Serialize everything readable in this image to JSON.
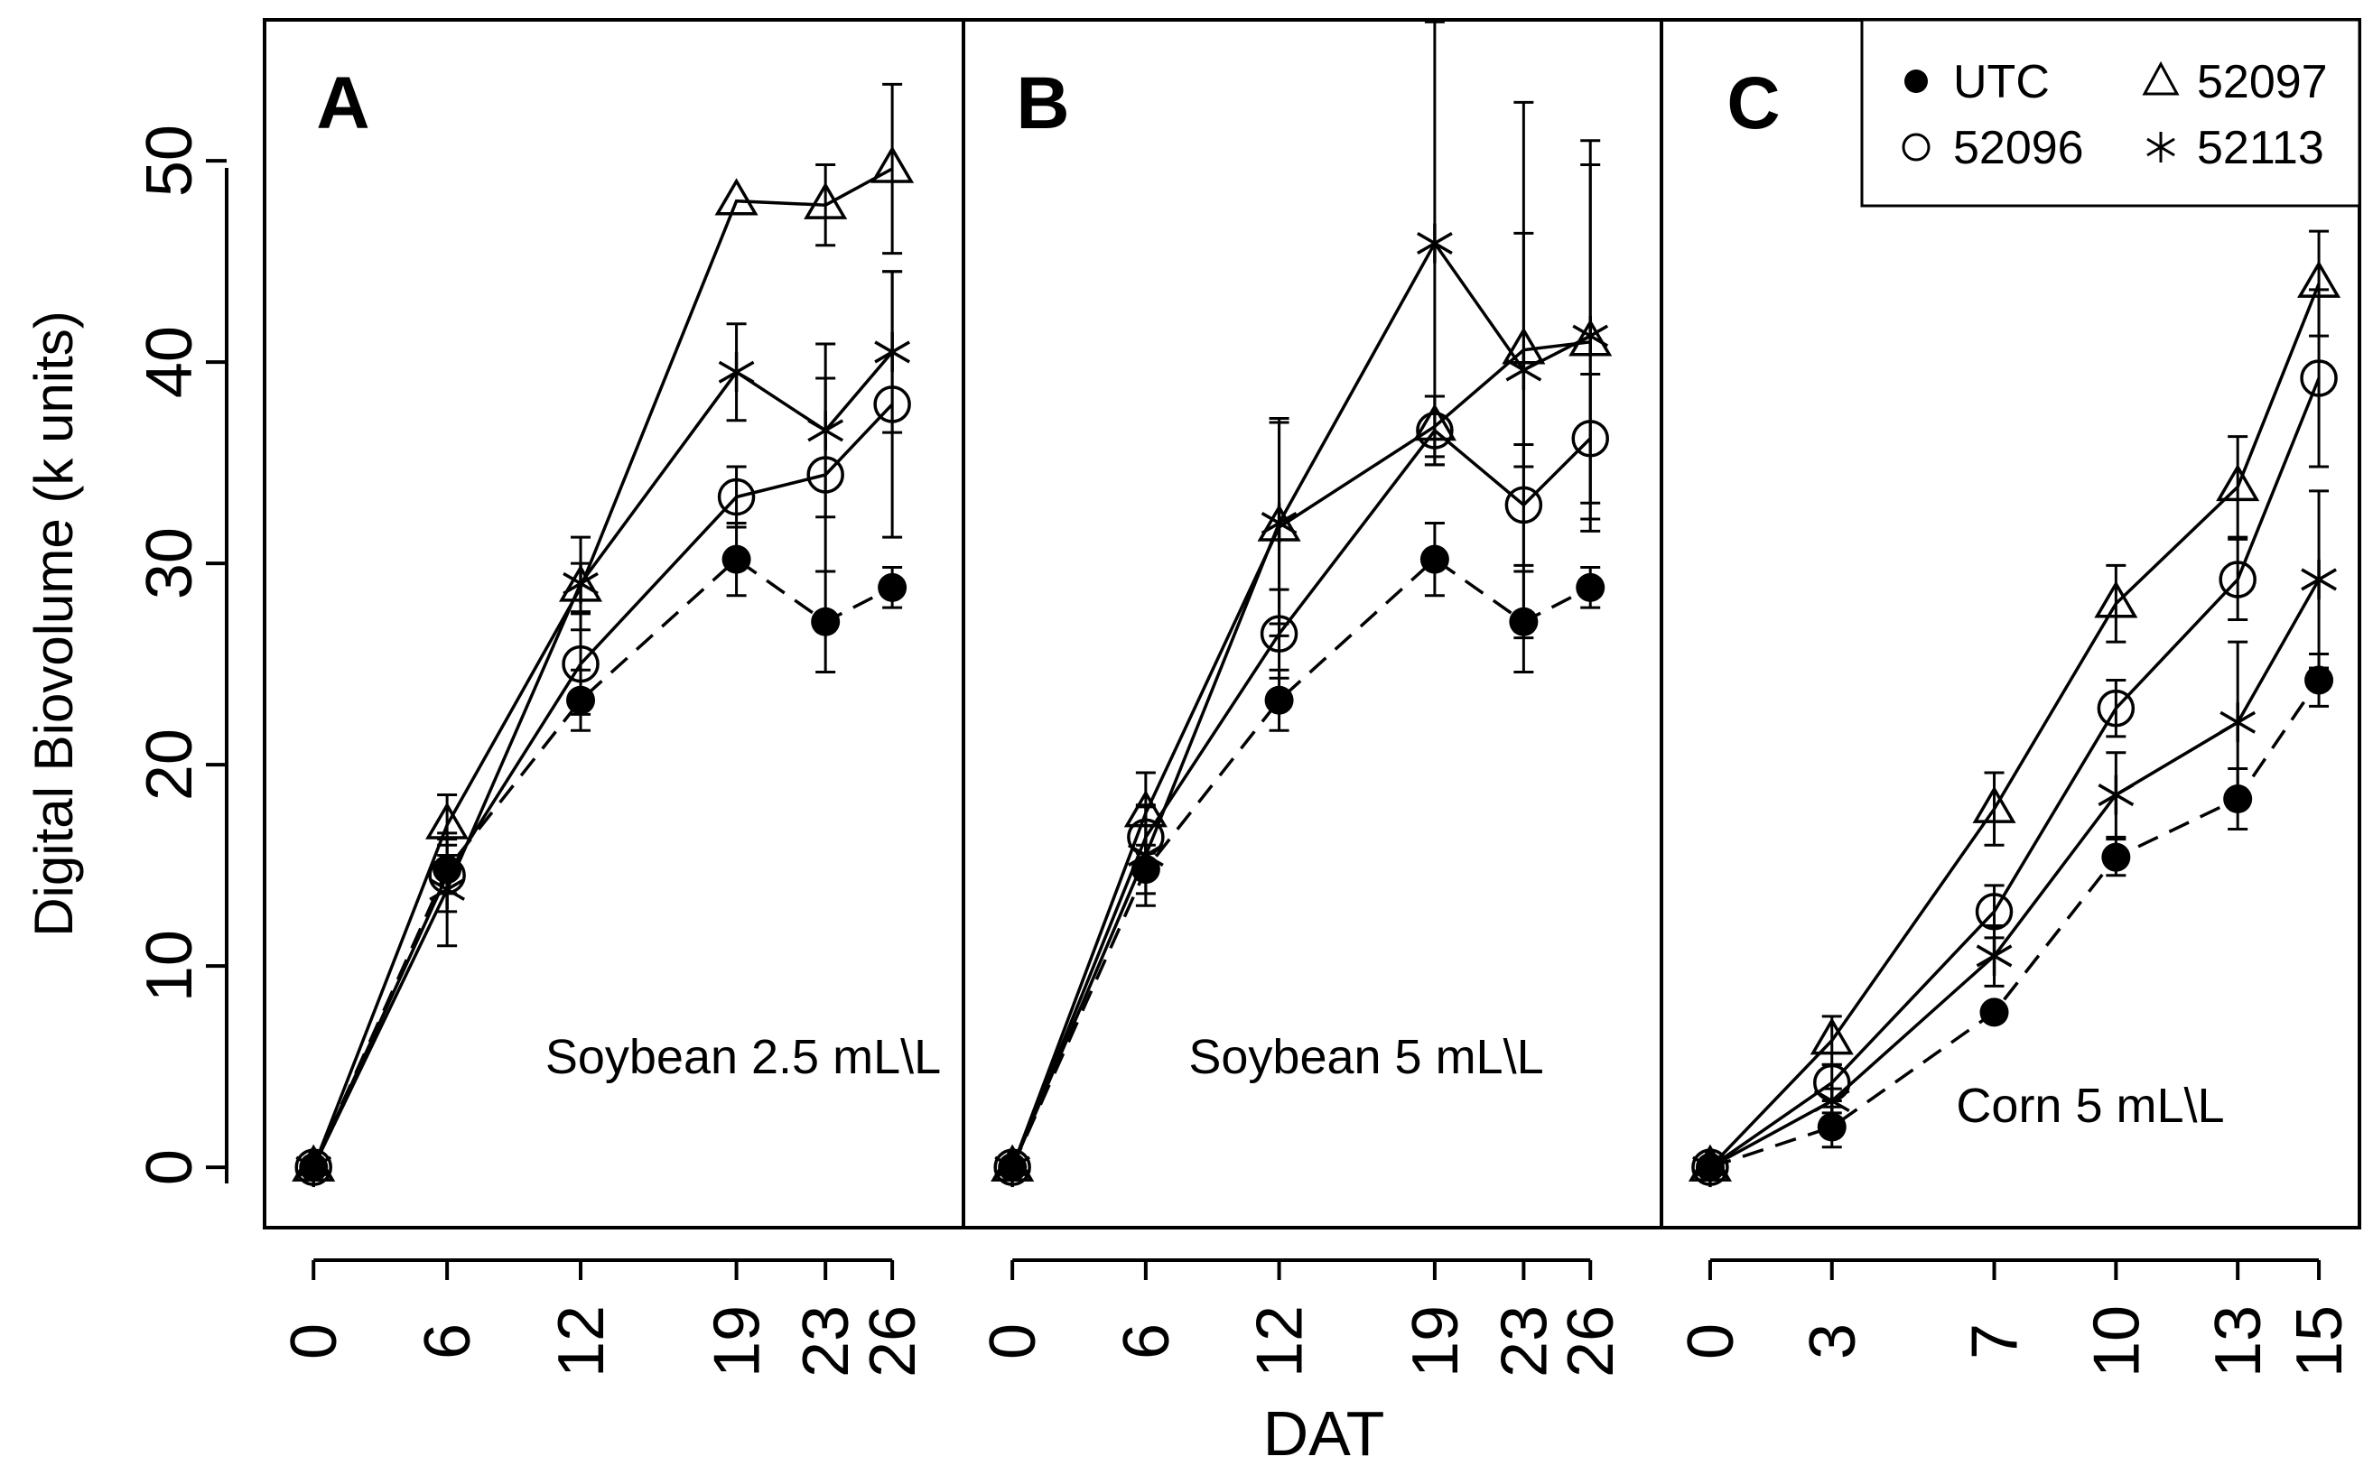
{
  "figure": {
    "ylabel": "Digital Biovolume (k units)",
    "xlabel": "DAT",
    "yticks": [
      "0",
      "10",
      "20",
      "30",
      "40",
      "50"
    ]
  },
  "legend": {
    "placement": "top-right",
    "entries": [
      {
        "label": "UTC",
        "marker": "filled-circle-icon"
      },
      {
        "label": "52097",
        "marker": "triangle-icon"
      },
      {
        "label": "52096",
        "marker": "open-circle-icon"
      },
      {
        "label": "52113",
        "marker": "asterisk-icon"
      }
    ]
  },
  "chart_data": [
    {
      "type": "line",
      "panel": "A",
      "annotation": "Soybean 2.5 mL\\L",
      "x": [
        0,
        6,
        12,
        19,
        23,
        26
      ],
      "xlim": [
        -2.2,
        29.2
      ],
      "ylim": [
        -3,
        57
      ],
      "series": [
        {
          "name": "UTC",
          "marker": "filled-circle",
          "dashed": true,
          "values": [
            0,
            14.8,
            23.2,
            30.2,
            27.1,
            28.8
          ],
          "errors": [
            0,
            1.2,
            1.5,
            1.8,
            2.5,
            1.0
          ]
        },
        {
          "name": "52097",
          "marker": "triangle",
          "dashed": false,
          "values": [
            0,
            17.0,
            28.8,
            48.0,
            47.8,
            49.6
          ],
          "errors": [
            0,
            1.5,
            1.2,
            0,
            2.0,
            4.2
          ]
        },
        {
          "name": "52096",
          "marker": "open-circle",
          "dashed": false,
          "values": [
            0,
            14.5,
            25.0,
            33.3,
            34.4,
            37.9
          ],
          "errors": [
            0,
            1.8,
            2.5,
            1.5,
            4.8,
            6.6
          ]
        },
        {
          "name": "52113",
          "marker": "asterisk",
          "dashed": false,
          "values": [
            0,
            13.8,
            29.0,
            39.5,
            36.6,
            40.5
          ],
          "errors": [
            0,
            2.8,
            2.3,
            2.4,
            4.3,
            4.0
          ]
        }
      ]
    },
    {
      "type": "line",
      "panel": "B",
      "annotation": "Soybean 5 mL\\L",
      "x": [
        0,
        6,
        12,
        19,
        23,
        26
      ],
      "xlim": [
        -2.2,
        29.2
      ],
      "ylim": [
        -3,
        57
      ],
      "series": [
        {
          "name": "UTC",
          "marker": "filled-circle",
          "dashed": true,
          "values": [
            0,
            14.8,
            23.2,
            30.2,
            27.1,
            28.8
          ],
          "errors": [
            0,
            1.2,
            1.5,
            1.8,
            2.5,
            1.0
          ]
        },
        {
          "name": "52097",
          "marker": "triangle",
          "dashed": false,
          "values": [
            0,
            17.6,
            31.8,
            36.8,
            40.6,
            41.0
          ],
          "errors": [
            0,
            2.0,
            5.4,
            1.5,
            5.8,
            8.8
          ]
        },
        {
          "name": "52096",
          "marker": "open-circle",
          "dashed": false,
          "values": [
            0,
            16.4,
            26.5,
            36.6,
            32.9,
            36.2
          ],
          "errors": [
            0,
            1.5,
            2.2,
            1.7,
            3.0,
            3.2
          ]
        },
        {
          "name": "52113",
          "marker": "asterisk",
          "dashed": false,
          "values": [
            0,
            15.5,
            32.0,
            45.9,
            39.6,
            41.3
          ],
          "errors": [
            0,
            2.5,
            5.0,
            11.0,
            13.3,
            9.7
          ]
        }
      ]
    },
    {
      "type": "line",
      "panel": "C",
      "annotation": "Corn 5 mL\\L",
      "x": [
        0,
        3,
        7,
        10,
        13,
        15
      ],
      "xlim": [
        -1.2,
        16.0
      ],
      "ylim": [
        -3,
        57
      ],
      "series": [
        {
          "name": "UTC",
          "marker": "filled-circle",
          "dashed": true,
          "values": [
            0,
            2.0,
            7.7,
            15.4,
            18.3,
            24.2
          ],
          "errors": [
            0,
            1.0,
            0,
            0.9,
            1.5,
            1.3
          ]
        },
        {
          "name": "52097",
          "marker": "triangle",
          "dashed": false,
          "values": [
            0,
            6.3,
            17.8,
            28.0,
            33.8,
            43.9
          ],
          "errors": [
            0,
            1.2,
            1.8,
            1.9,
            2.5,
            2.6
          ]
        },
        {
          "name": "52096",
          "marker": "open-circle",
          "dashed": false,
          "values": [
            0,
            4.2,
            12.7,
            22.8,
            29.2,
            39.2
          ],
          "errors": [
            0,
            0.9,
            1.3,
            1.4,
            2.0,
            4.4
          ]
        },
        {
          "name": "52113",
          "marker": "asterisk",
          "dashed": false,
          "values": [
            0,
            3.3,
            10.5,
            18.5,
            22.1,
            29.2
          ],
          "errors": [
            0,
            0.6,
            1.5,
            2.1,
            4.0,
            4.4
          ]
        }
      ]
    }
  ]
}
